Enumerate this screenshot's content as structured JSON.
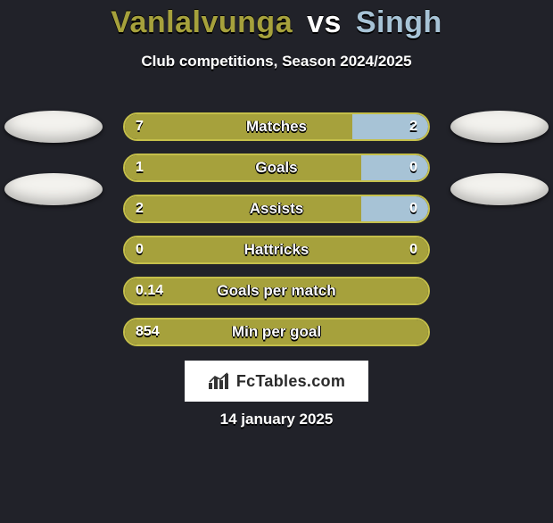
{
  "background_color": "#212229",
  "title": {
    "player1": "Vanlalvunga",
    "vs": "vs",
    "player2": "Singh",
    "fontsize": 34,
    "p1_color": "#a6a13c",
    "vs_color": "#ffffff",
    "p2_color": "#a7c3d6"
  },
  "subtitle": {
    "text": "Club competitions, Season 2024/2025",
    "fontsize": 17
  },
  "colors": {
    "p1": "#a6a13c",
    "p2": "#a7c3d6",
    "bar_border": "#c5bf4a"
  },
  "bars": [
    {
      "label": "Matches",
      "left_val": "7",
      "right_val": "2",
      "left_pct": 75,
      "right_pct": 25
    },
    {
      "label": "Goals",
      "left_val": "1",
      "right_val": "0",
      "left_pct": 78,
      "right_pct": 22
    },
    {
      "label": "Assists",
      "left_val": "2",
      "right_val": "0",
      "left_pct": 78,
      "right_pct": 22
    },
    {
      "label": "Hattricks",
      "left_val": "0",
      "right_val": "0",
      "left_pct": 100,
      "right_pct": 0
    },
    {
      "label": "Goals per match",
      "left_val": "0.14",
      "right_val": "",
      "left_pct": 100,
      "right_pct": 0
    },
    {
      "label": "Min per goal",
      "left_val": "854",
      "right_val": "",
      "left_pct": 100,
      "right_pct": 0
    }
  ],
  "bar_style": {
    "height": 32,
    "radius": 16,
    "label_fontsize": 17,
    "value_fontsize": 16
  },
  "avatars": {
    "left_count": 2,
    "right_count": 2
  },
  "logo": {
    "text": "FcTables.com",
    "fontsize": 18
  },
  "date": {
    "text": "14 january 2025",
    "fontsize": 17
  }
}
